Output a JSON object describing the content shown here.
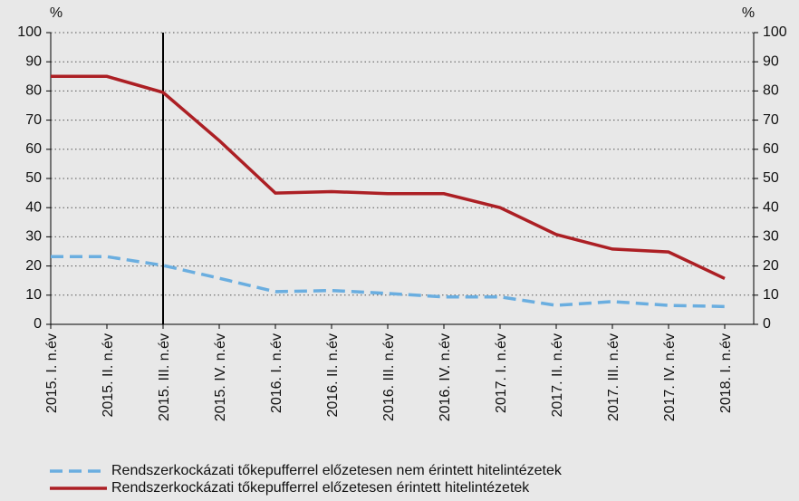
{
  "chart_data": {
    "type": "line",
    "y_axis_label": "%",
    "y2_axis_label": "%",
    "categories": [
      "2015. I. n.év",
      "2015. II. n.év",
      "2015. III. n.év",
      "2015. IV. n.év",
      "2016. I. n.év",
      "2016. II. n.év",
      "2016. III. n.év",
      "2016. IV. n.év",
      "2017. I. n.év",
      "2017. II. n.év",
      "2017. III. n.év",
      "2017. IV. n.év",
      "2018. I. n.év"
    ],
    "series": [
      {
        "name": "Rendszerkockázati tőkepufferrel előzetesen nem érintett hitelintézetek",
        "color": "#6aaee0",
        "dashed": true,
        "values": [
          23.2,
          23.2,
          20.2,
          15.8,
          11.2,
          11.6,
          10.6,
          9.4,
          9.4,
          6.5,
          7.8,
          6.5,
          6.1
        ]
      },
      {
        "name": "Rendszerkockázati tőkepufferrel előzetesen érintett hitelintézetek",
        "color": "#ac1f24",
        "dashed": false,
        "values": [
          85,
          85,
          79.5,
          63,
          45,
          45.5,
          44.8,
          44.8,
          40,
          30.8,
          25.8,
          24.8,
          15.7
        ]
      }
    ],
    "ylim": [
      0,
      100
    ],
    "yticks": [
      0,
      10,
      20,
      30,
      40,
      50,
      60,
      70,
      80,
      90,
      100
    ],
    "y2lim": [
      0,
      100
    ],
    "y2ticks": [
      0,
      10,
      20,
      30,
      40,
      50,
      60,
      70,
      80,
      90,
      100
    ],
    "grid": true
  }
}
